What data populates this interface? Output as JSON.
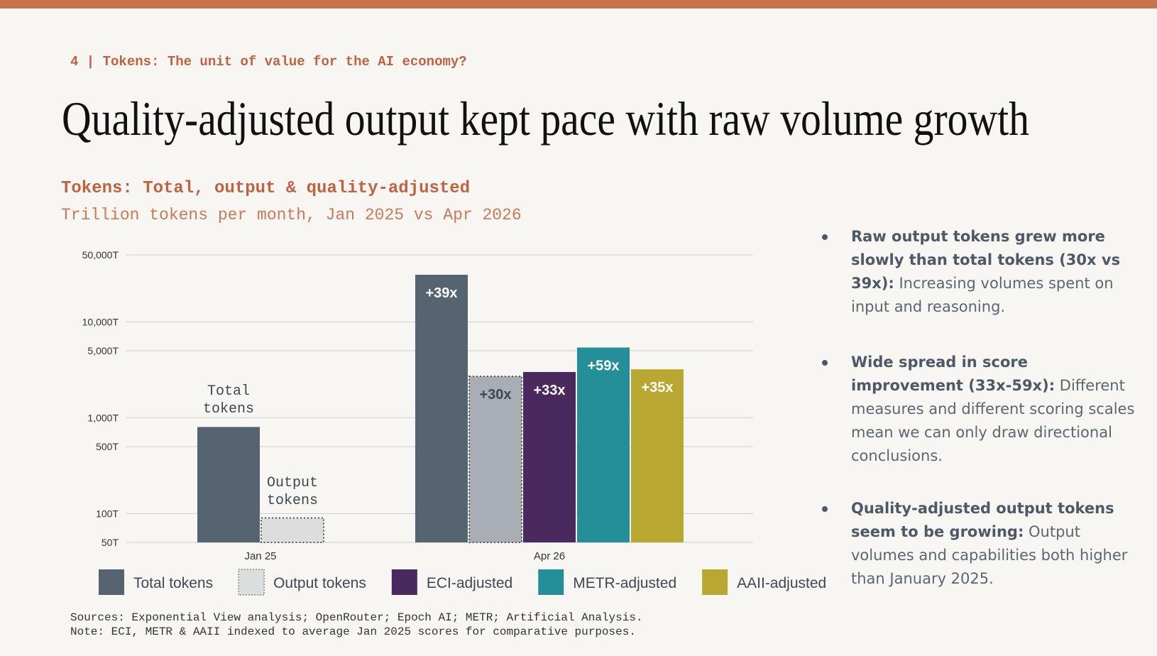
{
  "slide": {
    "section": "4 | Tokens: The unit of value for the AI economy?",
    "headline": "Quality-adjusted output kept pace with raw volume growth",
    "bullets": [
      {
        "bold": "Raw output tokens grew more slowly than total tokens (30x vs 39x):",
        "text": "Increasing volumes spent on input and reasoning."
      },
      {
        "bold": "Wide spread in score improvement (33x-59x):",
        "text": "Different measures and different scoring scales mean we can only draw directional conclusions."
      },
      {
        "bold": "Quality-adjusted output tokens seem to be growing:",
        "text": "Output volumes and capabilities both higher than January 2025."
      }
    ],
    "sources": "Sources: Exponential View analysis; OpenRouter; Epoch AI; METR; Artificial Analysis.",
    "note": "Note: ECI, METR & AAII indexed to average Jan 2025 scores for comparative purposes."
  },
  "chart_data": {
    "type": "bar",
    "title": "Tokens: Total, output & quality-adjusted",
    "subtitle": "Trillion tokens per month, Jan 2025 vs Apr 2026",
    "categories": [
      "Jan 25",
      "Apr 26"
    ],
    "log_scale": true,
    "grid": true,
    "ylim": [
      50,
      50000
    ],
    "yticks": [
      {
        "value": 50,
        "label": "50T"
      },
      {
        "value": 100,
        "label": "100T"
      },
      {
        "value": 500,
        "label": "500T"
      },
      {
        "value": 1000,
        "label": "1,000T"
      },
      {
        "value": 5000,
        "label": "5,000T"
      },
      {
        "value": 10000,
        "label": "10,000T"
      },
      {
        "value": 50000,
        "label": "50,000T"
      }
    ],
    "series": [
      {
        "name": "Total tokens",
        "color": "#566370",
        "values": [
          800,
          31000
        ],
        "annotations": [
          "Total tokens",
          "+39x"
        ],
        "label_color": "#ffffff"
      },
      {
        "name": "Output tokens",
        "color": "#dcdddf",
        "colors": [
          "#dcdddf",
          "#a9aeb4"
        ],
        "dashed": true,
        "values": [
          90,
          2700
        ],
        "annotations": [
          "Output tokens",
          "+30x"
        ],
        "label_color": "#3e4752"
      },
      {
        "name": "ECI-adjusted",
        "color": "#4a2a5e",
        "values": [
          null,
          3000
        ],
        "annotations": [
          null,
          "+33x"
        ],
        "label_color": "#ffffff"
      },
      {
        "name": "METR-adjusted",
        "color": "#258f99",
        "values": [
          null,
          5400
        ],
        "annotations": [
          null,
          "+59x"
        ],
        "label_color": "#ffffff"
      },
      {
        "name": "AAII-adjusted",
        "color": "#b8a832",
        "values": [
          null,
          3200
        ],
        "annotations": [
          null,
          "+35x"
        ],
        "label_color": "#ffffff"
      }
    ]
  }
}
